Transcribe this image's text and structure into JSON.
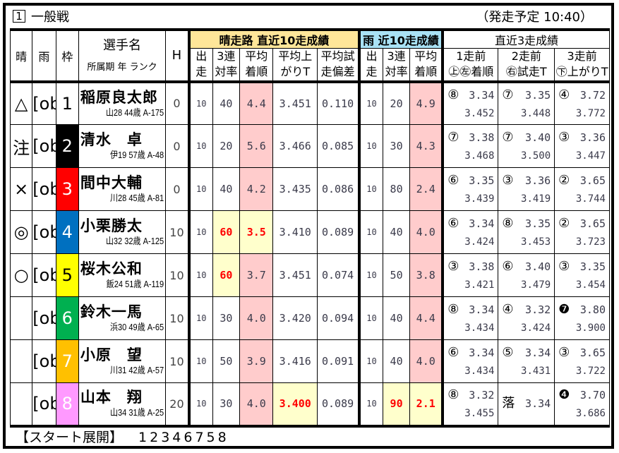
{
  "race": {
    "number": "1",
    "title": "一般戦",
    "start_time": "（発走予定 10:40）"
  },
  "headers": {
    "sunny": "晴",
    "rain": "雨",
    "frame": "枠",
    "name": "選手名",
    "name_sub": "所属期 年 ランク",
    "h": "H",
    "sun_group": "晴走路 直近10走成績",
    "rain_group": "雨 近10走成績",
    "recent_group": "直近3走成績",
    "starts": [
      "出",
      "走"
    ],
    "top3": [
      "3連",
      "対率"
    ],
    "avg_finish": [
      "平均",
      "着順"
    ],
    "avg_agari": [
      "平均上",
      "がりT"
    ],
    "avg_trial": [
      "平均試",
      "走偏差"
    ],
    "recent": [
      {
        "top": "1走前",
        "bottom": "㊤㊧着順"
      },
      {
        "top": "2走前",
        "bottom": "㊨試走T"
      },
      {
        "top": "3走前",
        "bottom": "㊦上がりT"
      }
    ]
  },
  "colors": {
    "sun_header": "#ffe699",
    "rain_header": "#a9e2f5",
    "pink": "#ffcccc",
    "yellow_highlight": "#ffffcc",
    "red_text": "#ff0000"
  },
  "rows": [
    {
      "sunny": "△",
      "rain": {
        "starts": "10",
        "top3": "20",
        "avg_finish": "4.9"
      },
      "frame": "1",
      "frame_bg": "#ffffff",
      "frame_fg": "#000000",
      "name": "稲原良太郎",
      "info": "山28 44歳 A-175",
      "h": "0",
      "sun": {
        "starts": "10",
        "top3": "40",
        "avg_finish": "4.4",
        "avg_agari": "3.451",
        "avg_trial": "0.110"
      },
      "styles": {
        "sun_avg_finish": "pink",
        "rain_avg_finish": "pink"
      },
      "recent": [
        {
          "mark": "⑧",
          "time": "3.34",
          "sub": "3.452"
        },
        {
          "mark": "⑦",
          "time": "3.35",
          "sub": "3.448"
        },
        {
          "mark": "④",
          "time": "3.72",
          "sub": "3.772"
        }
      ]
    },
    {
      "sunny": "注",
      "rain": {
        "starts": "10",
        "top3": "30",
        "avg_finish": "4.3"
      },
      "frame": "2",
      "frame_bg": "#000000",
      "frame_fg": "#ffffff",
      "name": "清水　卓",
      "info": "伊19 57歳 A-48",
      "h": "0",
      "sun": {
        "starts": "10",
        "top3": "20",
        "avg_finish": "5.6",
        "avg_agari": "3.466",
        "avg_trial": "0.085"
      },
      "styles": {
        "sun_avg_finish": "pink",
        "rain_avg_finish": "pink"
      },
      "recent": [
        {
          "mark": "⑦",
          "time": "3.38",
          "sub": "3.468"
        },
        {
          "mark": "⑦",
          "time": "3.40",
          "sub": "3.500"
        },
        {
          "mark": "③",
          "time": "3.36",
          "sub": "3.447"
        }
      ]
    },
    {
      "sunny": "×",
      "rain": {
        "starts": "10",
        "top3": "80",
        "avg_finish": "2.4"
      },
      "frame": "3",
      "frame_bg": "#ff0000",
      "frame_fg": "#ffffff",
      "name": "間中大輔",
      "info": "川28 45歳 A-81",
      "h": "0",
      "sun": {
        "starts": "10",
        "top3": "40",
        "avg_finish": "4.2",
        "avg_agari": "3.435",
        "avg_trial": "0.086"
      },
      "styles": {
        "sun_avg_finish": "pink",
        "rain_avg_finish": "pink"
      },
      "recent": [
        {
          "mark": "⑥",
          "time": "3.35",
          "sub": "3.439"
        },
        {
          "mark": "③",
          "time": "3.36",
          "sub": "3.419"
        },
        {
          "mark": "②",
          "time": "3.65",
          "sub": "3.744"
        }
      ]
    },
    {
      "sunny": "◎",
      "rain": {
        "starts": "10",
        "top3": "40",
        "avg_finish": "4.0"
      },
      "frame": "4",
      "frame_bg": "#0070c0",
      "frame_fg": "#ffffff",
      "name": "小栗勝太",
      "info": "山32 32歳 A-125",
      "h": "10",
      "sun": {
        "starts": "10",
        "top3": "60",
        "avg_finish": "3.5",
        "avg_agari": "3.410",
        "avg_trial": "0.089"
      },
      "styles": {
        "sun_top3": "yel red",
        "sun_avg_finish": "yel red",
        "rain_avg_finish": "pink"
      },
      "recent": [
        {
          "mark": "⑥",
          "time": "3.34",
          "sub": "3.424"
        },
        {
          "mark": "⑧",
          "time": "3.35",
          "sub": "3.453"
        },
        {
          "mark": "②",
          "time": "3.65",
          "sub": "3.723"
        }
      ]
    },
    {
      "sunny": "○",
      "rain": {
        "starts": "10",
        "top3": "50",
        "avg_finish": "3.8"
      },
      "frame": "5",
      "frame_bg": "#ffff00",
      "frame_fg": "#000000",
      "name": "桜木公和",
      "info": "飯24 51歳 A-119",
      "h": "10",
      "sun": {
        "starts": "10",
        "top3": "60",
        "avg_finish": "3.7",
        "avg_agari": "3.451",
        "avg_trial": "0.074"
      },
      "styles": {
        "sun_top3": "yel red",
        "sun_avg_finish": "pink",
        "rain_avg_finish": "pink"
      },
      "recent": [
        {
          "mark": "③",
          "time": "3.38",
          "sub": "3.421"
        },
        {
          "mark": "⑥",
          "time": "3.40",
          "sub": "3.479"
        },
        {
          "mark": "③",
          "time": "3.35",
          "sub": "3.454"
        }
      ]
    },
    {
      "sunny": "",
      "rain": {
        "starts": "10",
        "top3": "40",
        "avg_finish": "4.4"
      },
      "frame": "6",
      "frame_bg": "#00b050",
      "frame_fg": "#ffffff",
      "name": "鈴木一馬",
      "info": "浜30 49歳 A-65",
      "h": "10",
      "sun": {
        "starts": "10",
        "top3": "30",
        "avg_finish": "4.0",
        "avg_agari": "3.420",
        "avg_trial": "0.094"
      },
      "styles": {
        "sun_avg_finish": "pink",
        "rain_avg_finish": "pink"
      },
      "recent": [
        {
          "mark": "⑧",
          "time": "3.34",
          "sub": "3.434"
        },
        {
          "mark": "④",
          "time": "3.32",
          "sub": "3.424"
        },
        {
          "mark": "❼",
          "time": "3.80",
          "sub": "3.900"
        }
      ]
    },
    {
      "sunny": "",
      "rain": {
        "starts": "10",
        "top3": "40",
        "avg_finish": "4.0"
      },
      "frame": "7",
      "frame_bg": "#ffc000",
      "frame_fg": "#ffffff",
      "name": "小原　望",
      "info": "川31 42歳 A-57",
      "h": "10",
      "sun": {
        "starts": "10",
        "top3": "50",
        "avg_finish": "3.9",
        "avg_agari": "3.416",
        "avg_trial": "0.091"
      },
      "styles": {
        "sun_avg_finish": "pink",
        "rain_avg_finish": "pink"
      },
      "recent": [
        {
          "mark": "⑥",
          "time": "3.34",
          "sub": "3.434"
        },
        {
          "mark": "⑤",
          "time": "3.34",
          "sub": "3.431"
        },
        {
          "mark": "③",
          "time": "3.65",
          "sub": "3.722"
        }
      ]
    },
    {
      "sunny": "",
      "rain": {
        "starts": "10",
        "top3": "90",
        "avg_finish": "2.1"
      },
      "frame": "8",
      "frame_bg": "#ff99ff",
      "frame_fg": "#ffffff",
      "name": "山本　翔",
      "info": "山34 31歳 A-25",
      "h": "20",
      "sun": {
        "starts": "10",
        "top3": "30",
        "avg_finish": "4.0",
        "avg_agari": "3.400",
        "avg_trial": "0.089"
      },
      "styles": {
        "sun_avg_finish": "pink",
        "sun_avg_agari": "yel red",
        "rain_top3": "yel red",
        "rain_avg_finish": "yel red"
      },
      "recent": [
        {
          "mark": "⑧",
          "time": "3.32",
          "sub": "3.455"
        },
        {
          "mark": "落",
          "time": "3.34",
          "sub": ""
        },
        {
          "mark": "❹",
          "time": "3.70",
          "sub": "3.686"
        }
      ]
    }
  ],
  "footer": {
    "label": "【スタート展開】",
    "order": "12346758"
  }
}
